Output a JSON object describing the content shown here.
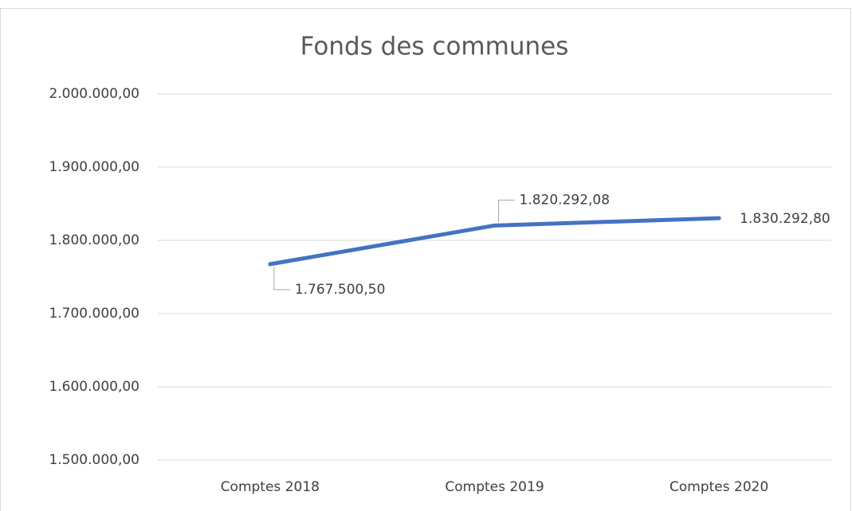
{
  "chart_data": {
    "type": "line",
    "title": "Fonds des communes",
    "categories": [
      "Comptes 2018",
      "Comptes 2019",
      "Comptes 2020"
    ],
    "series": [
      {
        "name": "Fonds des communes",
        "color": "#4472c4",
        "values": [
          1767500.5,
          1820292.08,
          1830292.8
        ],
        "value_labels": [
          "1.767.500,50",
          "1.820.292,08",
          "1.830.292,80"
        ]
      }
    ],
    "ylim": [
      1500000,
      2000000
    ],
    "yticks": [
      {
        "value": 1500000,
        "label": "1.500.000,00"
      },
      {
        "value": 1600000,
        "label": "1.600.000,00"
      },
      {
        "value": 1700000,
        "label": "1.700.000,00"
      },
      {
        "value": 1800000,
        "label": "1.800.000,00"
      },
      {
        "value": 1900000,
        "label": "1.900.000,00"
      },
      {
        "value": 2000000,
        "label": "2.000.000,00"
      }
    ],
    "grid": true
  }
}
